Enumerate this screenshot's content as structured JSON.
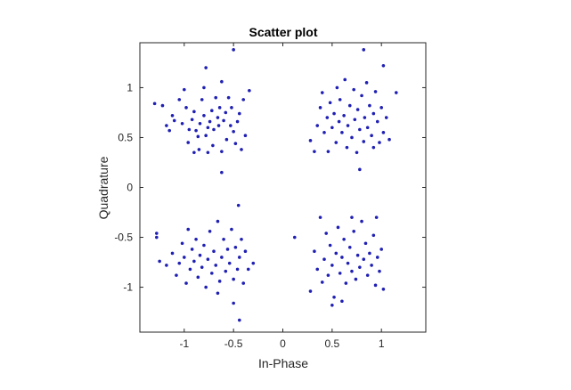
{
  "chart_data": {
    "type": "scatter",
    "title": "Scatter plot",
    "xlabel": "In-Phase",
    "ylabel": "Quadrature",
    "xlim": [
      -1.45,
      1.45
    ],
    "ylim": [
      -1.45,
      1.45
    ],
    "xticks": [
      -1,
      -0.5,
      0,
      0.5,
      1
    ],
    "yticks": [
      -1,
      -0.5,
      0,
      0.5,
      1
    ],
    "xtick_labels": [
      "-1",
      "-0.5",
      "0",
      "0.5",
      "1"
    ],
    "ytick_labels": [
      "-1",
      "-0.5",
      "0",
      "0.5",
      "1"
    ],
    "grid": false,
    "marker_color": "#1f1fb4",
    "series": [
      {
        "points": [
          [
            -1.3,
            0.84
          ],
          [
            -1.22,
            0.82
          ],
          [
            -1.18,
            0.62
          ],
          [
            -1.15,
            0.57
          ],
          [
            -1.12,
            0.72
          ],
          [
            -1.1,
            0.67
          ],
          [
            -1.05,
            0.88
          ],
          [
            -1.02,
            0.64
          ],
          [
            -1.0,
            0.98
          ],
          [
            -0.98,
            0.8
          ],
          [
            -0.96,
            0.45
          ],
          [
            -0.95,
            0.58
          ],
          [
            -0.92,
            0.68
          ],
          [
            -0.9,
            0.76
          ],
          [
            -0.88,
            0.57
          ],
          [
            -0.86,
            0.51
          ],
          [
            -0.85,
            0.38
          ],
          [
            -0.84,
            0.64
          ],
          [
            -0.82,
            0.88
          ],
          [
            -0.8,
            0.72
          ],
          [
            -0.8,
            1.0
          ],
          [
            -0.78,
            0.52
          ],
          [
            -0.76,
            0.6
          ],
          [
            -0.74,
            0.66
          ],
          [
            -0.72,
            0.77
          ],
          [
            -0.71,
            0.42
          ],
          [
            -0.7,
            0.58
          ],
          [
            -0.68,
            0.9
          ],
          [
            -0.66,
            0.7
          ],
          [
            -0.65,
            0.62
          ],
          [
            -0.64,
            0.8
          ],
          [
            -0.62,
            0.36
          ],
          [
            -0.6,
            0.67
          ],
          [
            -0.58,
            0.75
          ],
          [
            -0.57,
            0.48
          ],
          [
            -0.55,
            0.9
          ],
          [
            -0.53,
            0.62
          ],
          [
            -0.52,
            0.8
          ],
          [
            -0.5,
            0.56
          ],
          [
            -0.48,
            0.44
          ],
          [
            -0.46,
            0.66
          ],
          [
            -0.44,
            0.74
          ],
          [
            -0.42,
            0.38
          ],
          [
            -0.4,
            0.88
          ],
          [
            -0.38,
            0.52
          ],
          [
            -0.34,
            0.97
          ],
          [
            -0.5,
            1.38
          ],
          [
            -0.62,
            1.06
          ],
          [
            -0.78,
            1.2
          ],
          [
            -0.9,
            0.35
          ],
          [
            -0.62,
            0.15
          ],
          [
            -0.76,
            0.35
          ],
          [
            0.28,
            0.47
          ],
          [
            0.32,
            0.36
          ],
          [
            0.35,
            0.62
          ],
          [
            0.38,
            0.8
          ],
          [
            0.4,
            0.95
          ],
          [
            0.42,
            0.55
          ],
          [
            0.45,
            0.7
          ],
          [
            0.46,
            0.36
          ],
          [
            0.48,
            0.85
          ],
          [
            0.5,
            0.6
          ],
          [
            0.52,
            0.74
          ],
          [
            0.54,
            0.45
          ],
          [
            0.55,
            1.0
          ],
          [
            0.57,
            0.66
          ],
          [
            0.58,
            0.88
          ],
          [
            0.6,
            0.55
          ],
          [
            0.62,
            0.72
          ],
          [
            0.63,
            1.08
          ],
          [
            0.65,
            0.4
          ],
          [
            0.66,
            0.62
          ],
          [
            0.68,
            0.82
          ],
          [
            0.7,
            0.5
          ],
          [
            0.72,
            0.98
          ],
          [
            0.73,
            0.68
          ],
          [
            0.75,
            0.35
          ],
          [
            0.76,
            0.78
          ],
          [
            0.78,
            0.58
          ],
          [
            0.8,
            0.92
          ],
          [
            0.82,
            0.46
          ],
          [
            0.83,
            0.7
          ],
          [
            0.85,
            1.05
          ],
          [
            0.86,
            0.6
          ],
          [
            0.88,
            0.82
          ],
          [
            0.9,
            0.52
          ],
          [
            0.92,
            0.74
          ],
          [
            0.94,
            0.96
          ],
          [
            0.96,
            0.66
          ],
          [
            0.98,
            0.45
          ],
          [
            1.0,
            0.8
          ],
          [
            1.02,
            0.55
          ],
          [
            1.05,
            0.7
          ],
          [
            1.08,
            0.48
          ],
          [
            1.15,
            0.95
          ],
          [
            1.02,
            1.22
          ],
          [
            0.82,
            1.38
          ],
          [
            0.78,
            0.18
          ],
          [
            0.92,
            0.4
          ],
          [
            -1.28,
            -0.46
          ],
          [
            -1.28,
            -0.5
          ],
          [
            -1.25,
            -0.74
          ],
          [
            -1.18,
            -0.78
          ],
          [
            -1.12,
            -0.66
          ],
          [
            -1.08,
            -0.88
          ],
          [
            -1.05,
            -0.76
          ],
          [
            -1.02,
            -0.56
          ],
          [
            -1.0,
            -0.7
          ],
          [
            -0.98,
            -0.96
          ],
          [
            -0.96,
            -0.42
          ],
          [
            -0.94,
            -0.82
          ],
          [
            -0.92,
            -0.62
          ],
          [
            -0.9,
            -0.74
          ],
          [
            -0.88,
            -0.52
          ],
          [
            -0.86,
            -0.9
          ],
          [
            -0.84,
            -0.68
          ],
          [
            -0.82,
            -0.8
          ],
          [
            -0.8,
            -0.58
          ],
          [
            -0.78,
            -1.0
          ],
          [
            -0.76,
            -0.72
          ],
          [
            -0.74,
            -0.44
          ],
          [
            -0.72,
            -0.86
          ],
          [
            -0.7,
            -0.64
          ],
          [
            -0.68,
            -0.78
          ],
          [
            -0.66,
            -0.34
          ],
          [
            -0.64,
            -0.94
          ],
          [
            -0.62,
            -0.7
          ],
          [
            -0.6,
            -0.52
          ],
          [
            -0.58,
            -0.84
          ],
          [
            -0.56,
            -0.62
          ],
          [
            -0.54,
            -0.76
          ],
          [
            -0.52,
            -0.42
          ],
          [
            -0.5,
            -0.92
          ],
          [
            -0.48,
            -0.6
          ],
          [
            -0.46,
            -0.82
          ],
          [
            -0.44,
            -0.7
          ],
          [
            -0.42,
            -0.52
          ],
          [
            -0.4,
            -0.96
          ],
          [
            -0.38,
            -0.64
          ],
          [
            -0.35,
            -0.82
          ],
          [
            -0.45,
            -0.18
          ],
          [
            -0.5,
            -1.16
          ],
          [
            -0.44,
            -1.33
          ],
          [
            -0.66,
            -1.06
          ],
          [
            -0.3,
            -0.76
          ],
          [
            0.12,
            -0.5
          ],
          [
            0.28,
            -1.04
          ],
          [
            0.32,
            -0.64
          ],
          [
            0.35,
            -0.82
          ],
          [
            0.38,
            -0.3
          ],
          [
            0.4,
            -0.95
          ],
          [
            0.42,
            -0.72
          ],
          [
            0.44,
            -0.46
          ],
          [
            0.46,
            -0.88
          ],
          [
            0.48,
            -0.58
          ],
          [
            0.5,
            -0.78
          ],
          [
            0.52,
            -1.1
          ],
          [
            0.54,
            -0.66
          ],
          [
            0.56,
            -0.4
          ],
          [
            0.58,
            -0.86
          ],
          [
            0.6,
            -0.7
          ],
          [
            0.62,
            -0.52
          ],
          [
            0.64,
            -0.96
          ],
          [
            0.66,
            -0.76
          ],
          [
            0.68,
            -0.6
          ],
          [
            0.7,
            -0.84
          ],
          [
            0.72,
            -0.44
          ],
          [
            0.74,
            -0.92
          ],
          [
            0.76,
            -0.68
          ],
          [
            0.78,
            -0.8
          ],
          [
            0.8,
            -0.34
          ],
          [
            0.82,
            -0.72
          ],
          [
            0.84,
            -0.56
          ],
          [
            0.86,
            -0.88
          ],
          [
            0.88,
            -0.66
          ],
          [
            0.9,
            -0.78
          ],
          [
            0.92,
            -0.48
          ],
          [
            0.94,
            -0.98
          ],
          [
            0.96,
            -0.7
          ],
          [
            0.98,
            -0.84
          ],
          [
            1.0,
            -0.62
          ],
          [
            1.02,
            -1.02
          ],
          [
            0.95,
            -0.3
          ],
          [
            0.5,
            -1.18
          ],
          [
            0.6,
            -1.14
          ],
          [
            0.7,
            -0.3
          ]
        ]
      }
    ]
  }
}
